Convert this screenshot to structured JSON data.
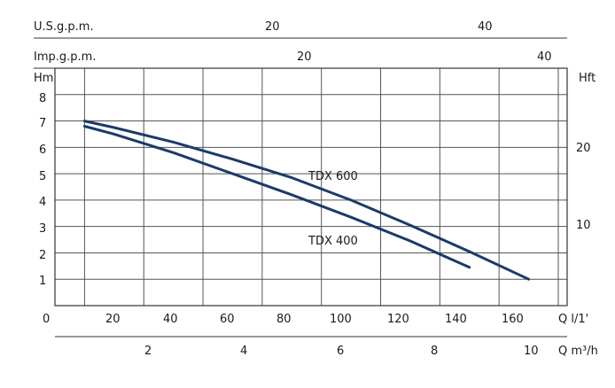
{
  "chart_data": {
    "type": "line",
    "series": [
      {
        "name": "TDX 600",
        "x": [
          10,
          20,
          40,
          60,
          80,
          100,
          120,
          140,
          160
        ],
        "values": [
          7.0,
          6.75,
          6.2,
          5.55,
          4.85,
          4.0,
          3.05,
          2.05,
          1.0
        ],
        "color": "#1c3a6a"
      },
      {
        "name": "TDX 400",
        "x": [
          10,
          20,
          40,
          60,
          80,
          100,
          120,
          140
        ],
        "values": [
          6.8,
          6.5,
          5.8,
          5.0,
          4.2,
          3.35,
          2.45,
          1.45
        ],
        "color": "#1c3a6a"
      }
    ],
    "xlabel": "Q l/1'",
    "ylabel": "Hm",
    "xlim": [
      0,
      173
    ],
    "ylim": [
      0,
      9
    ],
    "x_ticks": [
      "0",
      "20",
      "40",
      "60",
      "80",
      "100",
      "120",
      "140",
      "160"
    ],
    "y_ticks": [
      "1",
      "2",
      "3",
      "4",
      "5",
      "6",
      "7",
      "8"
    ],
    "secondary_axes": {
      "right": {
        "label": "Hft",
        "ticks": [
          "10",
          "20"
        ]
      },
      "top_usgpm": {
        "label": "U.S.g.p.m.",
        "ticks": [
          "20",
          "40"
        ]
      },
      "top_impgpm": {
        "label": "Imp.g.p.m.",
        "ticks": [
          "20",
          "40"
        ]
      },
      "bottom_m3h": {
        "label": "Q m³/h",
        "ticks": [
          "2",
          "4",
          "6",
          "8",
          "10"
        ]
      }
    },
    "grid": true,
    "series_labels": [
      "TDX 600",
      "TDX 400"
    ]
  }
}
